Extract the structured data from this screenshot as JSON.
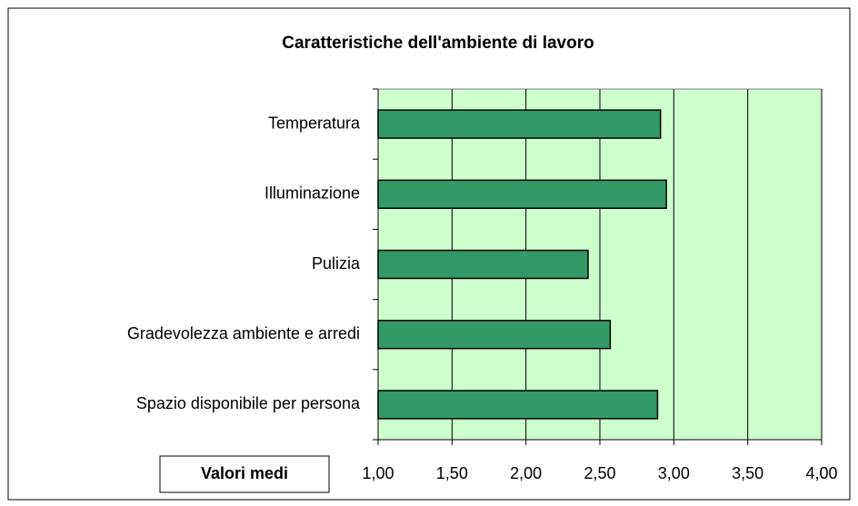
{
  "chart_data": {
    "type": "bar",
    "orientation": "horizontal",
    "title": "Caratteristiche dell'ambiente di lavoro",
    "x_label": "Valori medi",
    "categories": [
      "Temperatura",
      "Illuminazione",
      "Pulizia",
      "Gradevolezza ambiente e arredi",
      "Spazio disponibile per persona"
    ],
    "values": [
      2.91,
      2.95,
      2.42,
      2.57,
      2.89
    ],
    "color": "#339966",
    "plot_background": "#ccffcc",
    "xlim": [
      1,
      4
    ],
    "xticks": [
      {
        "value": 1,
        "label": "1,00"
      },
      {
        "value": 1.5,
        "label": "1,50"
      },
      {
        "value": 2,
        "label": "2,00"
      },
      {
        "value": 2.5,
        "label": "2,50"
      },
      {
        "value": 3,
        "label": "3,00"
      },
      {
        "value": 3.5,
        "label": "3,50"
      },
      {
        "value": 4,
        "label": "4,00"
      }
    ],
    "grid": true
  }
}
